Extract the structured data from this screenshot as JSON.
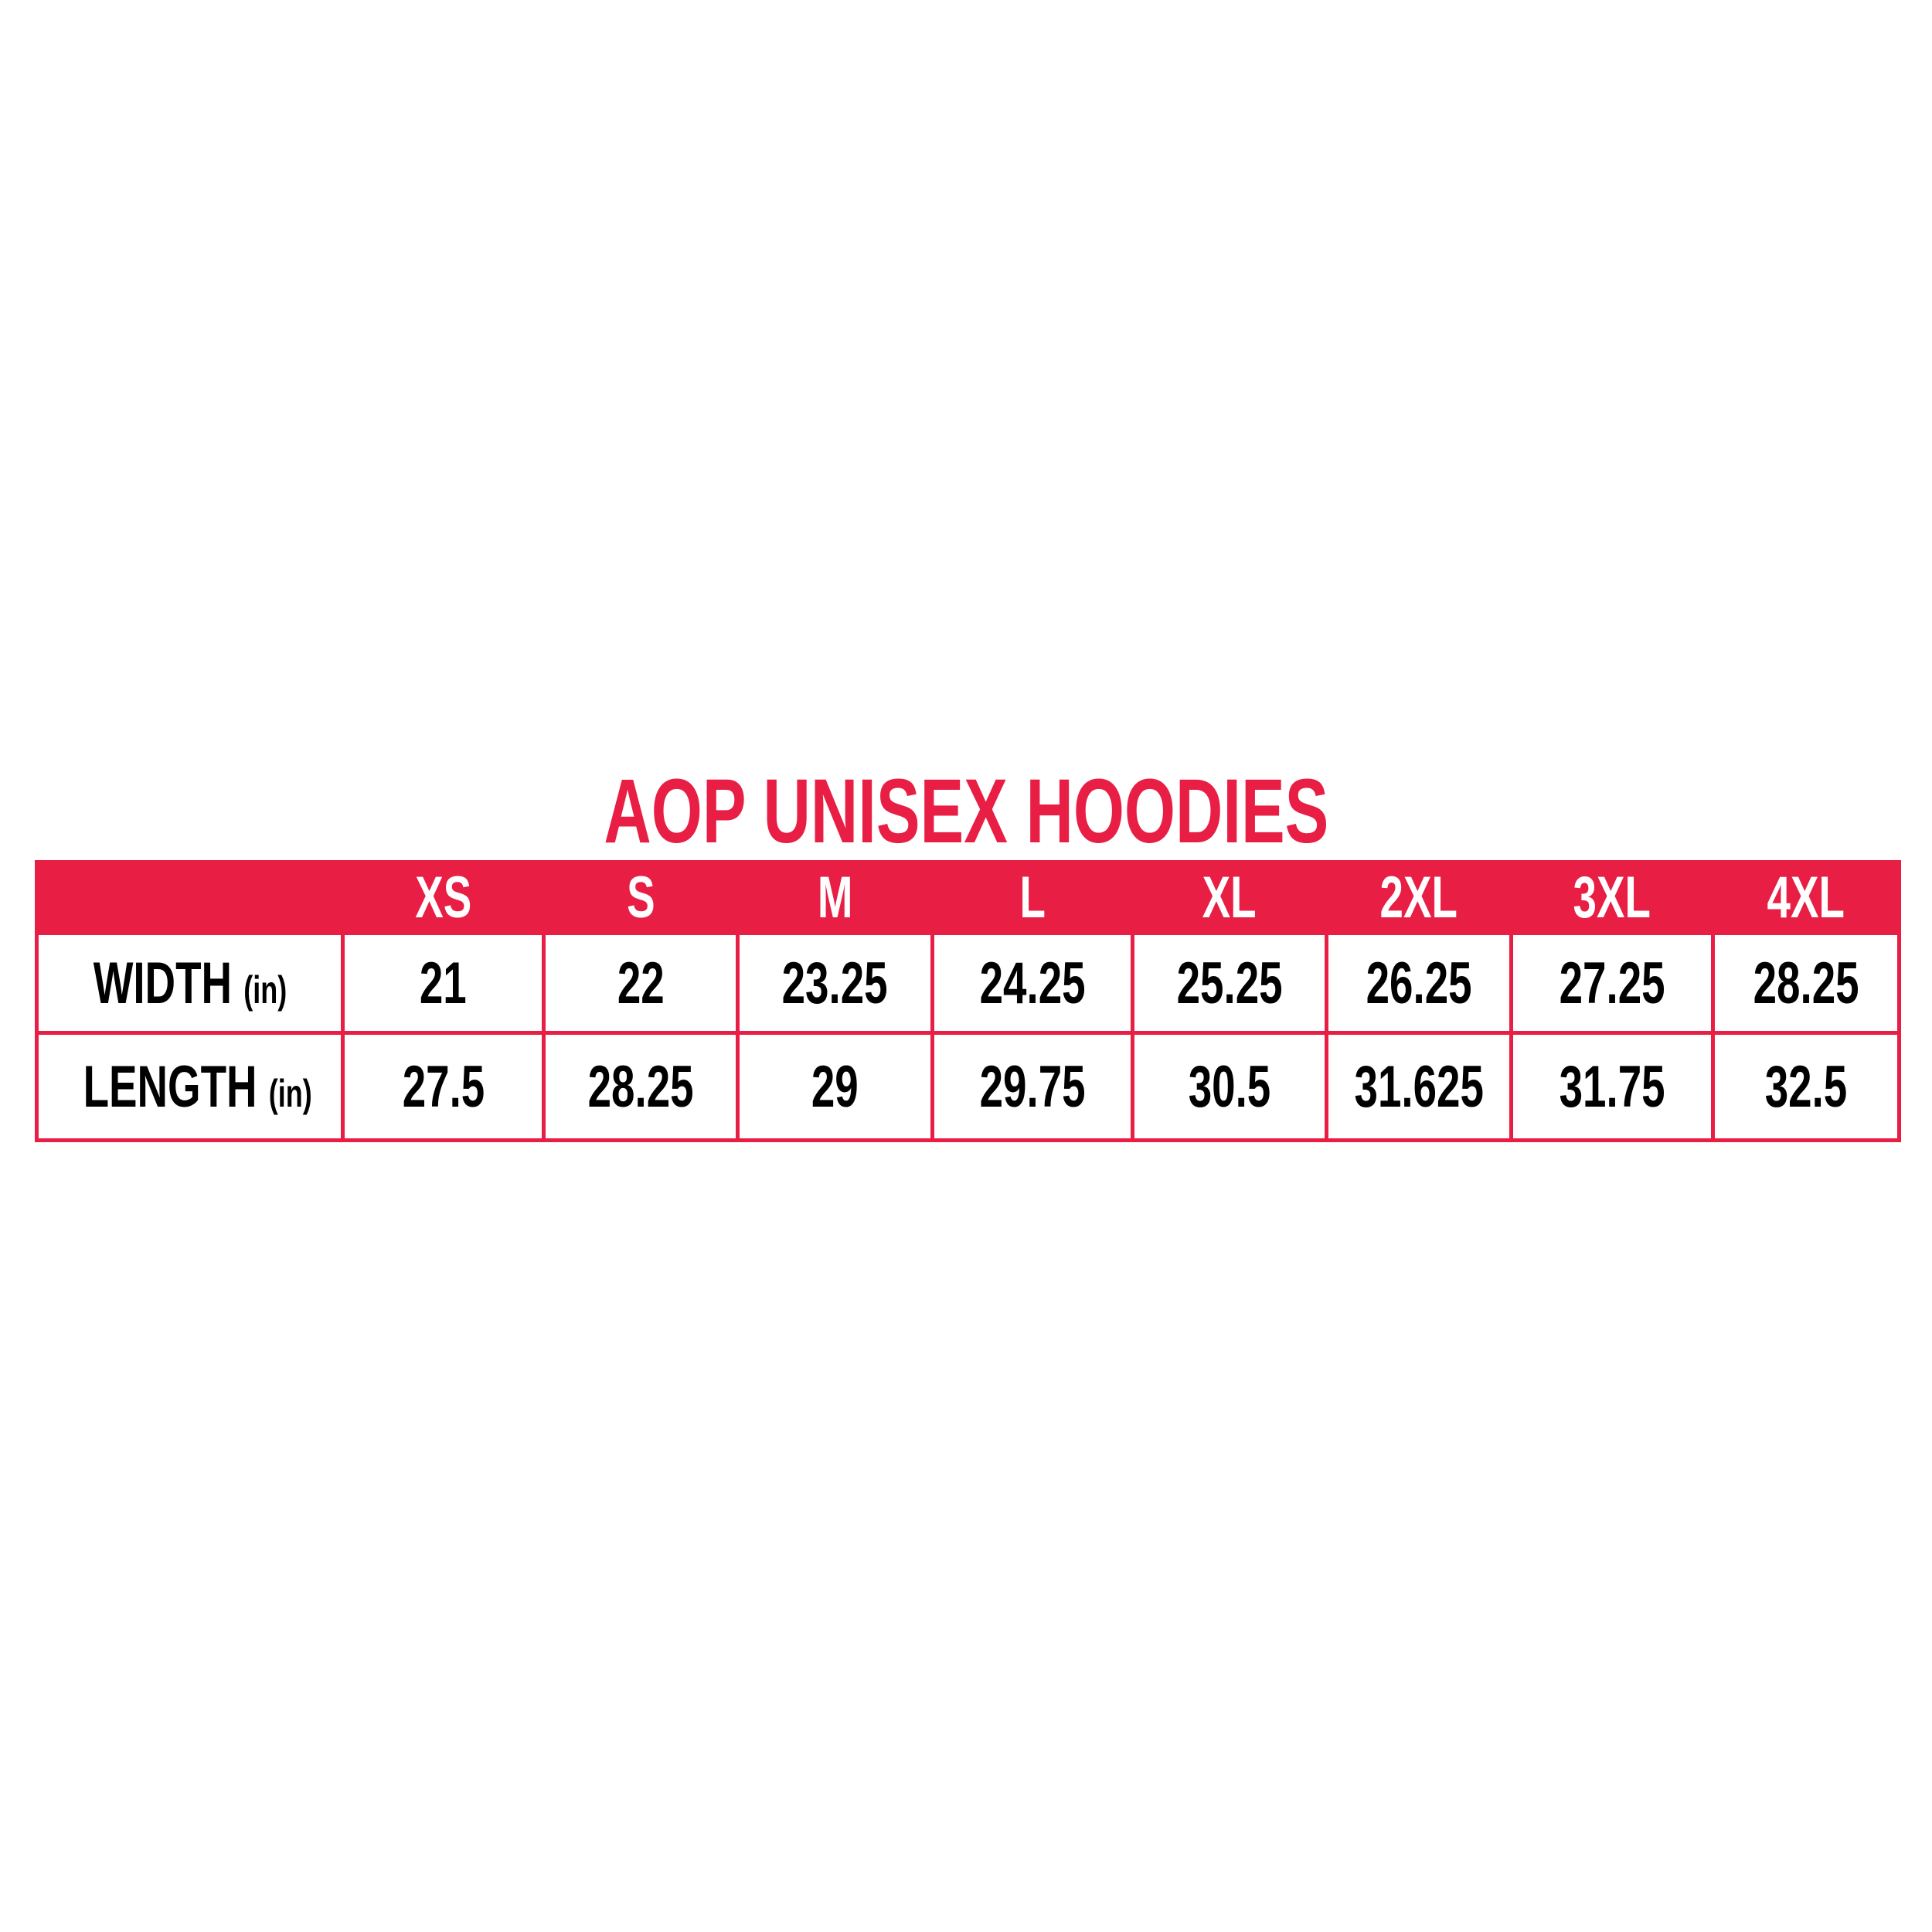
{
  "title": "AOP UNISEX HOODIES",
  "colors": {
    "accent": "#e81e44"
  },
  "table": {
    "headers": [
      "",
      "XS",
      "S",
      "M",
      "L",
      "XL",
      "2XL",
      "3XL",
      "4XL"
    ],
    "rows": [
      {
        "label": "WIDTH",
        "unit": "(in)",
        "values": [
          "21",
          "22",
          "23.25",
          "24.25",
          "25.25",
          "26.25",
          "27.25",
          "28.25"
        ]
      },
      {
        "label": "LENGTH",
        "unit": "(in)",
        "values": [
          "27.5",
          "28.25",
          "29",
          "29.75",
          "30.5",
          "31.625",
          "31.75",
          "32.5"
        ]
      }
    ]
  }
}
